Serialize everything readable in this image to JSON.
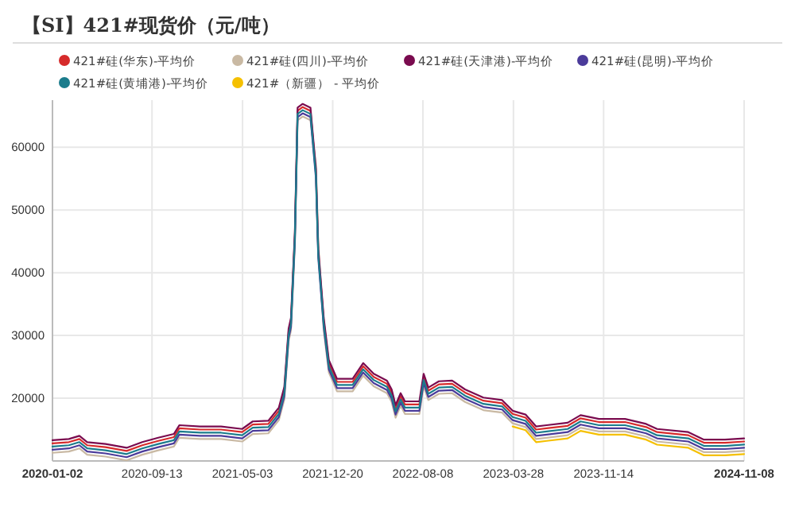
{
  "chart_data": {
    "type": "line",
    "title": "【SI】421#现货价（元/吨）",
    "x": [
      "2020-01-02",
      "2020-02-13",
      "2020-03-11",
      "2020-03-31",
      "2020-05-17",
      "2020-07-10",
      "2020-08-19",
      "2020-09-29",
      "2020-11-08",
      "2020-11-22",
      "2021-01-14",
      "2021-03-09",
      "2021-05-02",
      "2021-05-29",
      "2021-07-08",
      "2021-08-04",
      "2021-08-18",
      "2021-08-29",
      "2021-09-04",
      "2021-09-14",
      "2021-09-21",
      "2021-10-04",
      "2021-10-24",
      "2021-11-07",
      "2021-11-13",
      "2021-11-27",
      "2021-12-10",
      "2021-12-31",
      "2022-02-09",
      "2022-03-08",
      "2022-04-04",
      "2022-05-08",
      "2022-05-20",
      "2022-05-30",
      "2022-06-12",
      "2022-06-23",
      "2022-07-30",
      "2022-08-10",
      "2022-08-22",
      "2022-09-18",
      "2022-10-22",
      "2022-11-24",
      "2023-01-10",
      "2023-02-27",
      "2023-03-26",
      "2023-04-28",
      "2023-05-25",
      "2023-06-21",
      "2023-08-14",
      "2023-09-16",
      "2023-11-02",
      "2024-01-08",
      "2024-03-02",
      "2024-03-30",
      "2024-06-18",
      "2024-07-28",
      "2024-09-20",
      "2024-11-08"
    ],
    "series": [
      {
        "name": "421#硅(华东)-平均价",
        "color": "#d62b2b",
        "values": [
          12800,
          13000,
          13500,
          12500,
          12200,
          11600,
          12500,
          13200,
          13800,
          15200,
          15000,
          15000,
          14600,
          15800,
          15900,
          18000,
          21300,
          30600,
          32300,
          45900,
          65800,
          66400,
          65800,
          56000,
          43300,
          32300,
          25600,
          22600,
          22600,
          25100,
          23400,
          22300,
          20900,
          18400,
          20300,
          19000,
          19000,
          23400,
          21200,
          22200,
          22300,
          20900,
          19600,
          19200,
          17500,
          16900,
          15000,
          15200,
          15600,
          16800,
          16200,
          16200,
          15400,
          14600,
          14100,
          12900,
          12900,
          13100
        ]
      },
      {
        "name": "421#硅(四川)-平均价",
        "color": "#c9b9a3",
        "values": [
          11300,
          11500,
          12000,
          11000,
          10700,
          10100,
          11000,
          11700,
          12300,
          13700,
          13500,
          13500,
          13100,
          14300,
          14400,
          16500,
          19800,
          29100,
          30800,
          44400,
          64300,
          64900,
          64300,
          57200,
          44800,
          30800,
          24100,
          21100,
          21100,
          23600,
          21900,
          20800,
          19400,
          16900,
          18800,
          17500,
          17500,
          21900,
          19700,
          20700,
          20800,
          19400,
          18100,
          17700,
          16000,
          15400,
          13500,
          13700,
          14100,
          15300,
          14700,
          14700,
          13900,
          13100,
          12600,
          11400,
          11400,
          11600
        ]
      },
      {
        "name": "421#硅(天津港)-平均价",
        "color": "#7a0b4f",
        "values": [
          13300,
          13500,
          14000,
          13000,
          12700,
          12100,
          13000,
          13700,
          14300,
          15700,
          15500,
          15500,
          15100,
          16300,
          16400,
          18500,
          21800,
          31100,
          32800,
          46400,
          66300,
          66900,
          66300,
          56500,
          43800,
          32800,
          26100,
          23100,
          23100,
          25600,
          23900,
          22800,
          21400,
          18900,
          20800,
          19500,
          19500,
          23900,
          21700,
          22700,
          22800,
          21400,
          20100,
          19700,
          18000,
          17400,
          15500,
          15700,
          16100,
          17300,
          16700,
          16700,
          15900,
          15100,
          14600,
          13400,
          13400,
          13600
        ]
      },
      {
        "name": "421#硅(昆明)-平均价",
        "color": "#4b3b9a",
        "values": [
          11800,
          12000,
          12500,
          11500,
          11200,
          10600,
          11500,
          12200,
          12800,
          14200,
          14000,
          14000,
          13600,
          14800,
          14900,
          17000,
          20300,
          29600,
          31300,
          44900,
          64800,
          65400,
          64800,
          55000,
          42300,
          31300,
          24600,
          21600,
          21600,
          24100,
          22400,
          21300,
          19900,
          17400,
          19300,
          18000,
          18000,
          22400,
          20200,
          21200,
          21300,
          19900,
          18600,
          18200,
          16500,
          15900,
          14000,
          14200,
          14600,
          15800,
          15200,
          15200,
          14400,
          13600,
          13100,
          11900,
          11900,
          12100
        ]
      },
      {
        "name": "421#硅(黄埔港)-平均价",
        "color": "#1b7c8c",
        "values": [
          12300,
          12500,
          13000,
          12000,
          11700,
          11100,
          12000,
          12700,
          13300,
          14700,
          14500,
          14500,
          14100,
          15300,
          15400,
          17500,
          20800,
          30100,
          31800,
          45400,
          65300,
          65900,
          65300,
          55500,
          42800,
          31800,
          25100,
          22100,
          22100,
          24600,
          22900,
          21800,
          20400,
          17900,
          19800,
          18500,
          18500,
          22900,
          20700,
          21700,
          21800,
          20400,
          19100,
          18700,
          17000,
          16400,
          14500,
          14700,
          15100,
          16300,
          15700,
          15700,
          14900,
          14100,
          13600,
          12400,
          12400,
          12600
        ]
      },
      {
        "name": "421#（新疆） - 平均价",
        "color": "#f5c000",
        "values": [
          null,
          null,
          null,
          null,
          null,
          null,
          null,
          null,
          null,
          null,
          null,
          null,
          null,
          null,
          null,
          null,
          null,
          null,
          null,
          null,
          null,
          null,
          null,
          null,
          null,
          null,
          null,
          null,
          null,
          null,
          null,
          null,
          null,
          null,
          null,
          null,
          null,
          null,
          null,
          null,
          null,
          null,
          null,
          null,
          15500,
          14900,
          13000,
          13200,
          13600,
          14800,
          14200,
          14200,
          13400,
          12600,
          12100,
          10900,
          10900,
          11100
        ]
      }
    ],
    "xlim": [
      "2020-01-02",
      "2024-11-08"
    ],
    "xticks": [
      "2020-01-02",
      "2020-09-13",
      "2021-05-03",
      "2021-12-20",
      "2022-08-08",
      "2023-03-28",
      "2023-11-14",
      "2024-11-08"
    ],
    "ylim": [
      10000,
      67500
    ],
    "yticks": [
      20000,
      30000,
      40000,
      50000,
      60000
    ],
    "grid": true,
    "legend": "top",
    "marker": "none",
    "line_style": "solid"
  }
}
